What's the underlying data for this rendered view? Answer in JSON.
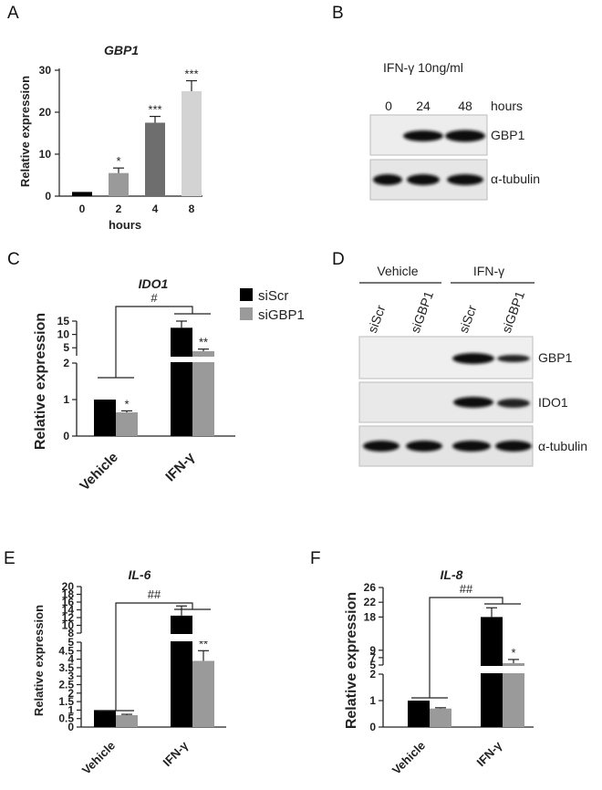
{
  "panels": {
    "A": "A",
    "B": "B",
    "C": "C",
    "D": "D",
    "E": "E",
    "F": "F"
  },
  "colors": {
    "black": "#000000",
    "gray": "#9a9a9a",
    "dark_gray": "#6e6e6e",
    "light_gray": "#d3d3d3"
  },
  "legend": {
    "siScr": "siScr",
    "siGBP1": "siGBP1"
  },
  "chart_data": [
    {
      "panel": "A",
      "type": "bar",
      "title": "GBP1",
      "xlabel": "hours",
      "ylabel": "Relative expression",
      "categories": [
        "0",
        "2",
        "4",
        "8"
      ],
      "values": [
        1,
        5.5,
        17.5,
        25
      ],
      "errors": [
        0.1,
        1.2,
        1.5,
        2.5
      ],
      "significance": [
        "",
        "*",
        "***",
        "***"
      ],
      "ylim": [
        0,
        30
      ],
      "yticks": [
        "0",
        "10",
        "20",
        "30"
      ],
      "bar_colors": [
        "#000000",
        "#9a9a9a",
        "#6e6e6e",
        "#d3d3d3"
      ]
    },
    {
      "panel": "C",
      "type": "bar",
      "title": "IDO1",
      "ylabel": "Relative expression",
      "categories": [
        "Vehicle",
        "IFN-γ"
      ],
      "series": [
        {
          "name": "siScr",
          "values": [
            1,
            12.5
          ],
          "errors": [
            0,
            2.5
          ]
        },
        {
          "name": "siGBP1",
          "values": [
            0.65,
            3.7
          ],
          "errors": [
            0.04,
            0.8
          ]
        }
      ],
      "significance": [
        "*",
        "**"
      ],
      "bracket_label": "#",
      "ylim_lower": [
        0,
        2
      ],
      "ylim_upper": [
        2,
        15
      ],
      "yticks": [
        "0",
        "1",
        "2",
        "5",
        "10",
        "15"
      ]
    },
    {
      "panel": "E",
      "type": "bar",
      "title": "IL-6",
      "ylabel": "Relative expression",
      "categories": [
        "Vehicle",
        "IFN-γ"
      ],
      "series": [
        {
          "name": "siScr",
          "values": [
            1,
            12.5
          ],
          "errors": [
            0,
            2.5
          ]
        },
        {
          "name": "siGBP1",
          "values": [
            0.7,
            3.9
          ],
          "errors": [
            0.05,
            0.6
          ]
        }
      ],
      "significance": [
        "",
        "**"
      ],
      "bracket_label": "##",
      "ylim_lower": [
        0,
        5
      ],
      "ylim_upper": [
        8,
        20
      ],
      "yticks": [
        "0",
        "0.5",
        "1",
        "1.5",
        "2",
        "2.5",
        "3",
        "3.5",
        "4",
        "4.5",
        "5",
        "8",
        "10",
        "12",
        "14",
        "16",
        "18",
        "20"
      ]
    },
    {
      "panel": "F",
      "type": "bar",
      "title": "IL-8",
      "ylabel": "Relative expression",
      "categories": [
        "Vehicle",
        "IFN-γ"
      ],
      "series": [
        {
          "name": "siScr",
          "values": [
            1,
            18
          ],
          "errors": [
            0,
            2.5
          ]
        },
        {
          "name": "siGBP1",
          "values": [
            0.7,
            5.5
          ],
          "errors": [
            0.03,
            1
          ]
        }
      ],
      "significance": [
        "",
        "*"
      ],
      "bracket_label": "##",
      "ylim_lower": [
        0,
        2
      ],
      "ylim_upper": [
        5,
        26
      ],
      "yticks": [
        "0",
        "1",
        "2",
        "5",
        "7",
        "9",
        "18",
        "22",
        "26"
      ]
    }
  ],
  "blot_B": {
    "treatment": "IFN-γ  10ng/ml",
    "lanes": [
      "0",
      "24",
      "48"
    ],
    "unit": "hours",
    "rows": [
      "GBP1",
      "α-tubulin"
    ]
  },
  "blot_D": {
    "groups": [
      "Vehicle",
      "IFN-γ"
    ],
    "lanes": [
      "siScr",
      "siGBP1",
      "siScr",
      "siGBP1"
    ],
    "rows": [
      "GBP1",
      "IDO1",
      "α-tubulin"
    ]
  }
}
